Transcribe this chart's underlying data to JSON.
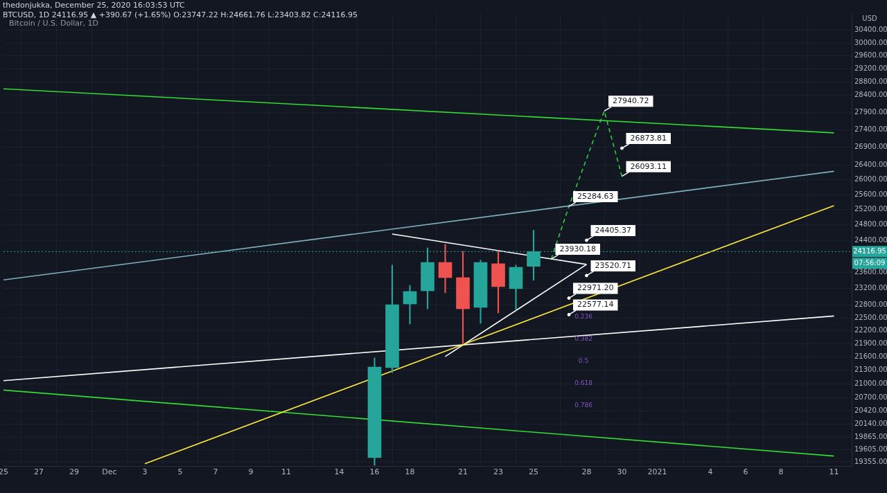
{
  "chart_data": {
    "type": "candlestick",
    "title": "thedonjukka, December 25, 2020 16:03:53 UTC",
    "subtitle": "BTCUSD, 1D  24116.95 ▲ +390.67 (+1.65%) O:23747.22 H:24661.76 L:23403.82 C:24116.95",
    "ylabel": "USD",
    "x": [
      "2020-12-16",
      "2020-12-17",
      "2020-12-18",
      "2020-12-19",
      "2020-12-20",
      "2020-12-21",
      "2020-12-22",
      "2020-12-23",
      "2020-12-24",
      "2020-12-25"
    ],
    "ohlc": [
      [
        19438,
        21575,
        19283,
        21374
      ],
      [
        21359,
        23779,
        21250,
        22815
      ],
      [
        22831,
        23280,
        22356,
        23131
      ],
      [
        23147,
        24211,
        22715,
        23846
      ],
      [
        23846,
        24299,
        23098,
        23469
      ],
      [
        23469,
        24125,
        21906,
        22715
      ],
      [
        22748,
        23900,
        22372,
        23846
      ],
      [
        23813,
        24125,
        22617,
        23249
      ],
      [
        23199,
        23779,
        22699,
        23725
      ],
      [
        23747.22,
        24661.76,
        23403.82,
        24116.95
      ]
    ],
    "colors": [
      "#26a69a",
      "#26a69a",
      "#26a69a",
      "#26a69a",
      "#ef5350",
      "#ef5350",
      "#26a69a",
      "#ef5350",
      "#26a69a",
      "#26a69a"
    ],
    "series": [
      {
        "type": "line",
        "x": [
          "2020-12-03",
          "2021-01-11"
        ],
        "values": [
          19317,
          25306
        ],
        "color": "#ffeb3b"
      },
      {
        "type": "line",
        "x": [
          "2020-11-25",
          "2021-01-11"
        ],
        "values": [
          21071,
          22545
        ],
        "color": "#ffffff"
      },
      {
        "type": "line",
        "x": [
          "2020-11-25",
          "2021-01-11"
        ],
        "values": [
          28597,
          27309
        ],
        "color": "#33dd33"
      },
      {
        "type": "line",
        "x": [
          "2020-11-25",
          "2021-01-11"
        ],
        "values": [
          20863,
          19472
        ],
        "color": "#33dd33"
      },
      {
        "type": "line",
        "x": [
          "2020-11-25",
          "2021-01-11"
        ],
        "values": [
          23412,
          26232
        ],
        "color": "#7fb3c0"
      },
      {
        "type": "line",
        "x": [
          "2020-12-17",
          "2020-12-28"
        ],
        "values": [
          24564,
          23795
        ],
        "color": "#ffffff"
      },
      {
        "type": "line",
        "x": [
          "2020-12-20",
          "2020-12-28"
        ],
        "values": [
          21609,
          23795
        ],
        "color": "#ffffff"
      },
      {
        "type": "line",
        "x": [
          "2020-12-26",
          "2020-12-27",
          "2020-12-29",
          "2020-12-30"
        ],
        "values": [
          23930.18,
          25284.63,
          27940.72,
          26093.11
        ],
        "color": "#2ecc40",
        "line_style": "dashed",
        "value_labels": [
          "23930.18",
          "25284.63",
          "27940.72",
          "26093.11"
        ]
      },
      {
        "type": "scatter",
        "marker": "circle",
        "x": [
          "2020-12-30",
          "2020-12-28",
          "2020-12-28",
          "2020-12-27",
          "2020-12-27"
        ],
        "values": [
          26873.81,
          24405.37,
          23520.71,
          22971.2,
          22577.14
        ],
        "color": "#ffffff",
        "value_labels": [
          "26873.81",
          "24405.37",
          "23520.71",
          "22971.20",
          "22577.14"
        ]
      }
    ],
    "ref_lines": [
      {
        "axis": "y",
        "value": 24116.95,
        "label": "24116.95",
        "color": "#26a69a",
        "line_style": "dotted"
      }
    ],
    "annotations": [
      "Bitcoin / U.S. Dollar, 1D",
      "07:56:09",
      "0.236",
      "0.382",
      "0.5",
      "0.618",
      "0.786"
    ],
    "xlim": [
      "2020-11-25",
      "2021-01-12"
    ],
    "xticks": [
      {
        "value": "2020-11-25",
        "label": "25"
      },
      {
        "value": "2020-11-27",
        "label": "27"
      },
      {
        "value": "2020-11-29",
        "label": "29"
      },
      {
        "value": "2020-12-01",
        "label": "Dec"
      },
      {
        "value": "2020-12-03",
        "label": "3"
      },
      {
        "value": "2020-12-05",
        "label": "5"
      },
      {
        "value": "2020-12-07",
        "label": "7"
      },
      {
        "value": "2020-12-09",
        "label": "9"
      },
      {
        "value": "2020-12-11",
        "label": "11"
      },
      {
        "value": "2020-12-14",
        "label": "14"
      },
      {
        "value": "2020-12-16",
        "label": "16"
      },
      {
        "value": "2020-12-18",
        "label": "18"
      },
      {
        "value": "2020-12-21",
        "label": "21"
      },
      {
        "value": "2020-12-23",
        "label": "23"
      },
      {
        "value": "2020-12-25",
        "label": "25"
      },
      {
        "value": "2020-12-28",
        "label": "28"
      },
      {
        "value": "2020-12-30",
        "label": "30"
      },
      {
        "value": "2021-01-01",
        "label": "2021"
      },
      {
        "value": "2021-01-04",
        "label": "4"
      },
      {
        "value": "2021-01-06",
        "label": "6"
      },
      {
        "value": "2021-01-08",
        "label": "8"
      },
      {
        "value": "2021-01-11",
        "label": "11"
      }
    ],
    "ylim": [
      19270,
      30930
    ],
    "yticks": [
      {
        "value": 19355,
        "label": "19355.00"
      },
      {
        "value": 19605,
        "label": "19605.00"
      },
      {
        "value": 19865,
        "label": "19865.00"
      },
      {
        "value": 20140,
        "label": "20140.00"
      },
      {
        "value": 20420,
        "label": "20420.00"
      },
      {
        "value": 20700,
        "label": "20700.00"
      },
      {
        "value": 21000,
        "label": "21000.00"
      },
      {
        "value": 21300,
        "label": "21300.00"
      },
      {
        "value": 21600,
        "label": "21600.00"
      },
      {
        "value": 21900,
        "label": "21900.00"
      },
      {
        "value": 22200,
        "label": "22200.00"
      },
      {
        "value": 22500,
        "label": "22500.00"
      },
      {
        "value": 22800,
        "label": "22800.00"
      },
      {
        "value": 23200,
        "label": "23200.00"
      },
      {
        "value": 23600,
        "label": "23600.00"
      },
      {
        "value": 24400,
        "label": "24400.00"
      },
      {
        "value": 24800,
        "label": "24800.00"
      },
      {
        "value": 25200,
        "label": "25200.00"
      },
      {
        "value": 25600,
        "label": "25600.00"
      },
      {
        "value": 26000,
        "label": "26000.00"
      },
      {
        "value": 26400,
        "label": "26400.00"
      },
      {
        "value": 26900,
        "label": "26900.00"
      },
      {
        "value": 27400,
        "label": "27400.00"
      },
      {
        "value": 27900,
        "label": "27900.00"
      },
      {
        "value": 28400,
        "label": "28400.00"
      },
      {
        "value": 28800,
        "label": "28800.00"
      },
      {
        "value": 29200,
        "label": "29200.00"
      },
      {
        "value": 29600,
        "label": "29600.00"
      },
      {
        "value": 30000,
        "label": "30000.00"
      },
      {
        "value": 30400,
        "label": "30400.00"
      }
    ],
    "log": true,
    "grid": true
  }
}
